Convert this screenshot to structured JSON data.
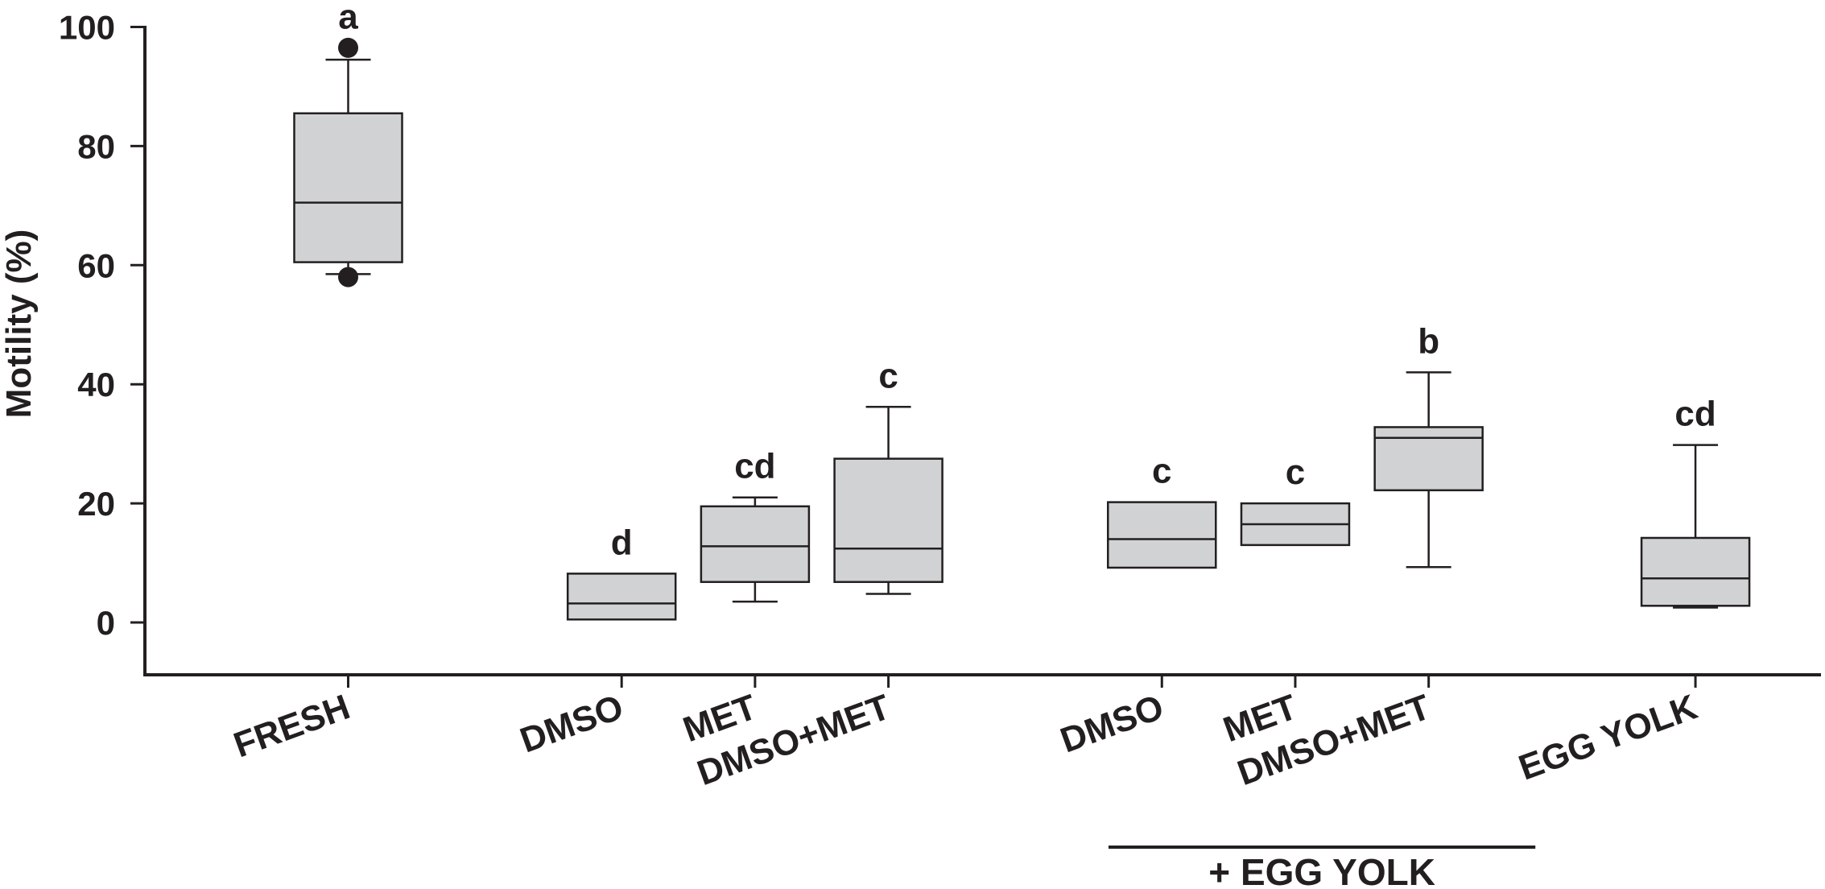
{
  "chart_data": {
    "type": "box",
    "ylabel": "Motility (%)",
    "ylim": [
      -9,
      100
    ],
    "yticks": [
      0,
      20,
      40,
      60,
      80,
      100
    ],
    "grid": false,
    "box_color": "#d1d2d4",
    "line_color": "#231f20",
    "categories": [
      {
        "label": "FRESH",
        "position": 1,
        "letter": "a",
        "whisker_low": 58.5,
        "q1": 60.5,
        "median": 70.5,
        "q3": 85.5,
        "whisker_high": 94.5,
        "outliers": [
          96.5,
          58
        ]
      },
      {
        "label": "DMSO",
        "position": 3.05,
        "letter": "d",
        "whisker_low": 0.5,
        "q1": 0.5,
        "median": 3.2,
        "q3": 8.2,
        "whisker_high": 8.2,
        "outliers": []
      },
      {
        "label": "MET",
        "position": 4.05,
        "letter": "cd",
        "whisker_low": 3.5,
        "q1": 6.8,
        "median": 12.8,
        "q3": 19.5,
        "whisker_high": 21,
        "outliers": []
      },
      {
        "label": "DMSO+MET",
        "position": 5.05,
        "letter": "c",
        "whisker_low": 4.8,
        "q1": 6.8,
        "median": 12.4,
        "q3": 27.5,
        "whisker_high": 36.2,
        "outliers": []
      },
      {
        "label": "DMSO",
        "position": 7.1,
        "letter": "c",
        "whisker_low": 9.2,
        "q1": 9.2,
        "median": 14,
        "q3": 20.2,
        "whisker_high": 20.2,
        "outliers": []
      },
      {
        "label": "MET",
        "position": 8.1,
        "letter": "c",
        "whisker_low": 13,
        "q1": 13,
        "median": 16.5,
        "q3": 20,
        "whisker_high": 20,
        "outliers": []
      },
      {
        "label": "DMSO+MET",
        "position": 9.1,
        "letter": "b",
        "whisker_low": 9.3,
        "q1": 22.2,
        "median": 31,
        "q3": 32.8,
        "whisker_high": 42,
        "outliers": []
      },
      {
        "label": "EGG YOLK",
        "position": 11.1,
        "letter": "cd",
        "whisker_low": 2.5,
        "q1": 2.8,
        "median": 7.4,
        "q3": 14.2,
        "whisker_high": 29.8,
        "outliers": []
      }
    ],
    "group_bracket": {
      "label": "+ EGG YOLK",
      "from": 6.7,
      "to": 9.9
    }
  }
}
